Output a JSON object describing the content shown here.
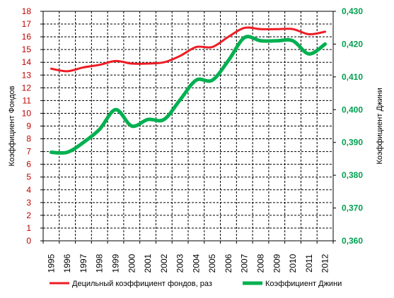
{
  "chart_data": {
    "type": "line",
    "x": [
      "1995",
      "1996",
      "1997",
      "1998",
      "1999",
      "2000",
      "2001",
      "2002",
      "2003",
      "2004",
      "2005",
      "2006",
      "2007",
      "2008",
      "2009",
      "2010",
      "2011",
      "2012"
    ],
    "series": [
      {
        "name": "Децильный коэффициент фондов, раз",
        "axis": "left",
        "color": "#ee1c25",
        "values": [
          13.5,
          13.3,
          13.6,
          13.8,
          14.1,
          13.9,
          13.9,
          14.0,
          14.5,
          15.2,
          15.2,
          16.0,
          16.7,
          16.6,
          16.6,
          16.6,
          16.2,
          16.4
        ]
      },
      {
        "name": "Коэффициент Джини",
        "axis": "right",
        "color": "#00b050",
        "values": [
          0.387,
          0.387,
          0.39,
          0.394,
          0.4,
          0.395,
          0.397,
          0.397,
          0.403,
          0.409,
          0.409,
          0.415,
          0.422,
          0.421,
          0.421,
          0.421,
          0.417,
          0.42
        ]
      }
    ],
    "y_left": {
      "label": "Коэффициент Фондов",
      "range": [
        0,
        18
      ],
      "ticks": [
        "0",
        "1",
        "2",
        "3",
        "4",
        "5",
        "6",
        "7",
        "8",
        "9",
        "10",
        "11",
        "12",
        "13",
        "14",
        "15",
        "16",
        "17",
        "18"
      ]
    },
    "y_right": {
      "label": "Коэффициент Джини",
      "range": [
        0.36,
        0.43
      ],
      "ticks": [
        "0,360",
        "0,370",
        "0,380",
        "0,390",
        "0,400",
        "0,410",
        "0,420",
        "0,430"
      ]
    },
    "grid": true,
    "grid_style": "dashed",
    "legend_position": "bottom"
  }
}
